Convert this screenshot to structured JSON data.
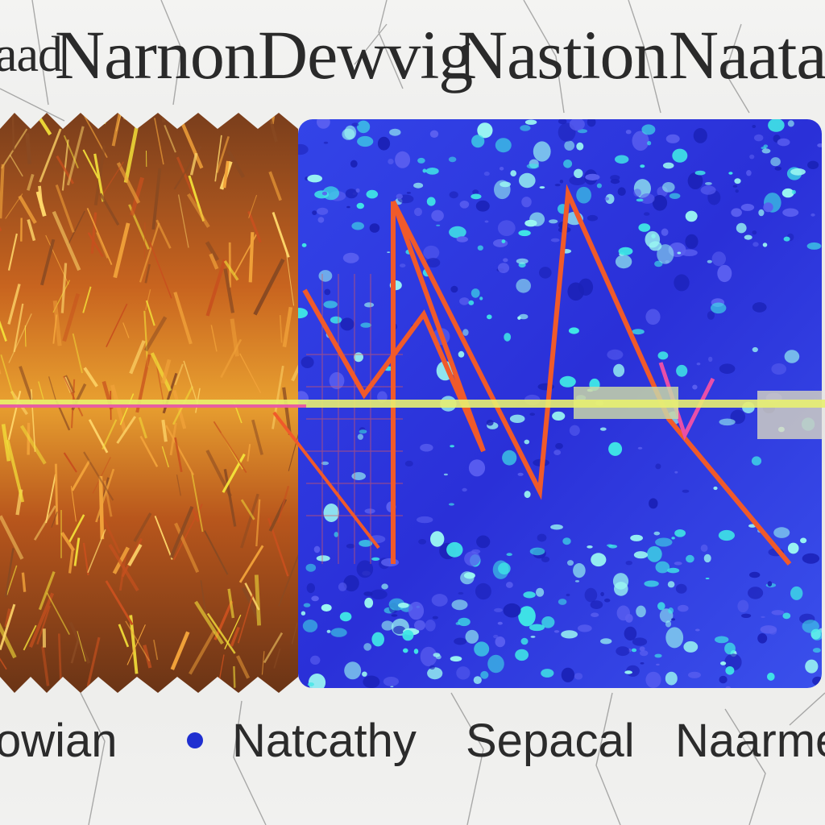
{
  "header": {
    "words": [
      "aad",
      "Narnon",
      "Dewvig",
      "Nastion",
      "Naatar"
    ]
  },
  "footer": {
    "words": [
      "owian",
      "Natcathy",
      "Sepacal",
      "Naarme"
    ],
    "dot_color": "#1f2fd0"
  },
  "artwork": {
    "left_panel_palette": [
      "#f2a33a",
      "#c8501e",
      "#f4e23a",
      "#8a4a22",
      "#ffd76a"
    ],
    "right_panel_palette": [
      "#2d3be6",
      "#3fe6e6",
      "#5a5ff0",
      "#9af7f2",
      "#1b22b8"
    ],
    "zigzag_color": "#f05a2a",
    "center_band_color": "#e8f070"
  }
}
